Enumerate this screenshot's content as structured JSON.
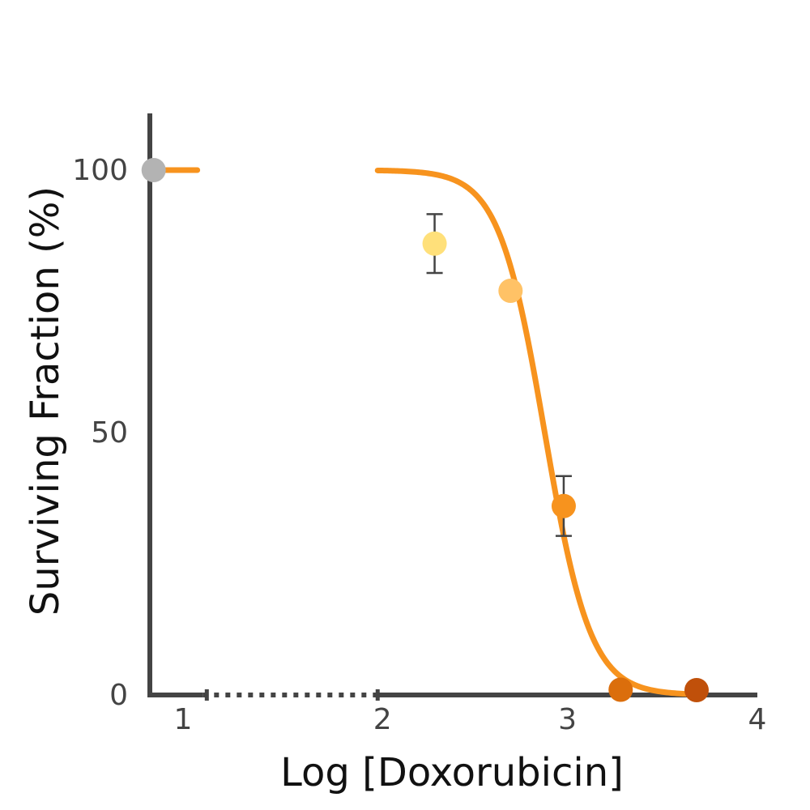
{
  "chart_data": {
    "type": "scatter",
    "xlabel": "Log [Doxorubicin]",
    "ylabel": "Surviving Fraction (%)",
    "xlim": [
      0.8,
      4.0
    ],
    "ylim": [
      0,
      100
    ],
    "y_ticks": [
      {
        "value": 0,
        "label": "0"
      },
      {
        "value": 50,
        "label": "50"
      },
      {
        "value": 100,
        "label": "100"
      }
    ],
    "x_ticks": [
      {
        "value": 1,
        "label": "1"
      },
      {
        "value": 2,
        "label": "2"
      },
      {
        "value": 3,
        "label": "3"
      },
      {
        "value": 4,
        "label": "4"
      }
    ],
    "axis_break": [
      1.1,
      2.0
    ],
    "grid": false,
    "legend": false,
    "colors": {
      "axis": "#444444",
      "curve": "#f7931e",
      "error_bar": "#444444"
    },
    "points": [
      {
        "x": 0.82,
        "y": 100,
        "color": "#b3b3b3"
      },
      {
        "x": 2.3,
        "y": 86,
        "err": 5.6,
        "color": "#ffe07a"
      },
      {
        "x": 2.7,
        "y": 77,
        "color": "#ffc266"
      },
      {
        "x": 2.98,
        "y": 36,
        "err": 5.7,
        "color": "#f7931e"
      },
      {
        "x": 3.28,
        "y": 1,
        "color": "#db6e0c"
      },
      {
        "x": 3.68,
        "y": 0,
        "color": "#c0500a"
      }
    ],
    "fit_curve": {
      "top": 100,
      "bottom": 0,
      "log_ic50": 2.88,
      "hill": -3.6
    }
  }
}
